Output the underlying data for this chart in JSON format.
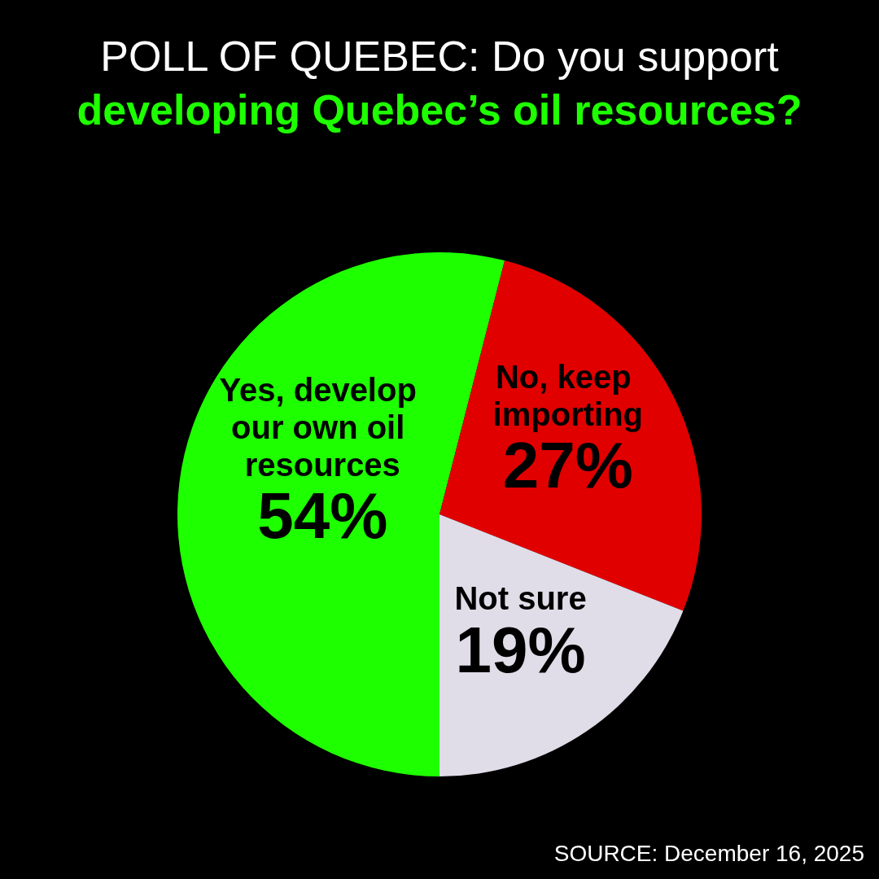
{
  "chart_data": {
    "type": "pie",
    "title": "POLL OF QUEBEC: Do you support",
    "subtitle": "developing Quebec’s oil resources?",
    "categories": [
      "Yes, develop our own oil resources",
      "No, keep importing",
      "Not sure"
    ],
    "values": [
      54,
      27,
      19
    ],
    "colors": [
      "#1eff00",
      "#e10000",
      "#e0dde8"
    ],
    "value_labels": [
      "54%",
      "27%",
      "19%"
    ],
    "annotations": [
      "SOURCE: December 16, 2025"
    ],
    "legend": false
  }
}
